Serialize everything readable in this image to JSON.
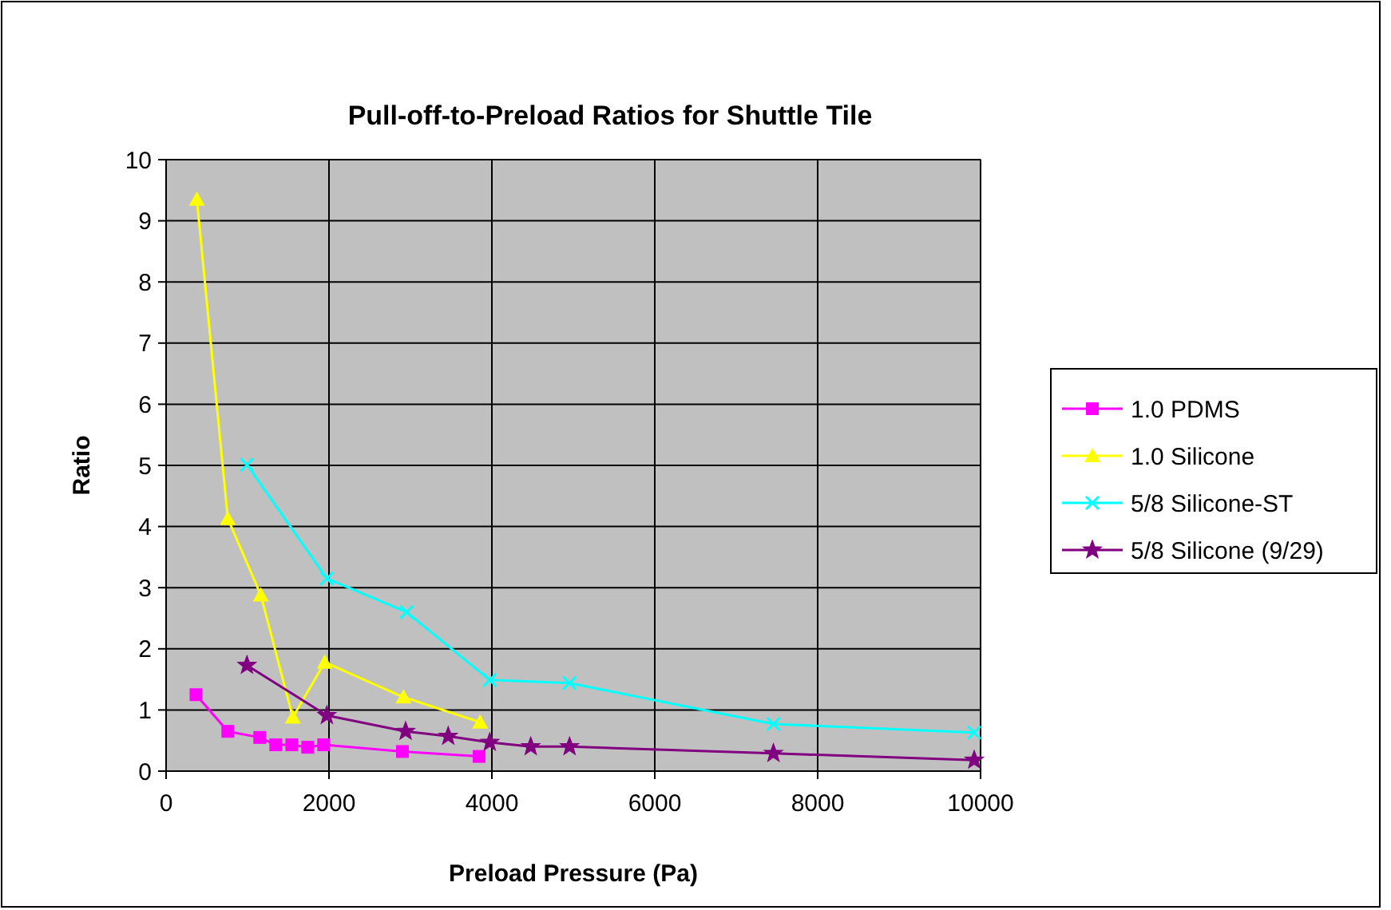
{
  "chart_data": {
    "type": "line",
    "title": "Pull-off-to-Preload Ratios for Shuttle Tile",
    "xlabel": "Preload Pressure (Pa)",
    "ylabel": "Ratio",
    "xlim": [
      0,
      10000
    ],
    "xticks": [
      0,
      2000,
      4000,
      6000,
      8000,
      10000
    ],
    "ylim": [
      0,
      10
    ],
    "yticks": [
      0,
      1,
      2,
      3,
      4,
      5,
      6,
      7,
      8,
      9,
      10
    ],
    "grid": true,
    "legend": "right",
    "series": [
      {
        "name": "1.0 PDMS",
        "color": "#ff00ff",
        "marker": "square",
        "x": [
          367,
          758,
          1150,
          1346,
          1543,
          1739,
          1935,
          2902,
          3843
        ],
        "values": [
          1.25,
          0.65,
          0.55,
          0.43,
          0.43,
          0.39,
          0.43,
          0.32,
          0.24
        ]
      },
      {
        "name": "1.0 Silicone",
        "color": "#ffff00",
        "marker": "triangle",
        "x": [
          378,
          758,
          1163,
          1556,
          1948,
          2915,
          3856
        ],
        "values": [
          9.35,
          4.13,
          2.88,
          0.88,
          1.78,
          1.21,
          0.8
        ]
      },
      {
        "name": "5/8 Silicone-ST",
        "color": "#00ffff",
        "marker": "cross",
        "x": [
          993,
          1974,
          2954,
          3974,
          4954,
          7457,
          9922
        ],
        "values": [
          5.01,
          3.15,
          2.6,
          1.49,
          1.44,
          0.77,
          0.63
        ]
      },
      {
        "name": "5/8 Silicone (9/29)",
        "color": "#800080",
        "marker": "star",
        "x": [
          993,
          1974,
          2941,
          3464,
          3974,
          4477,
          4954,
          7457,
          9922
        ],
        "values": [
          1.73,
          0.91,
          0.65,
          0.57,
          0.47,
          0.4,
          0.4,
          0.29,
          0.18
        ]
      }
    ]
  }
}
